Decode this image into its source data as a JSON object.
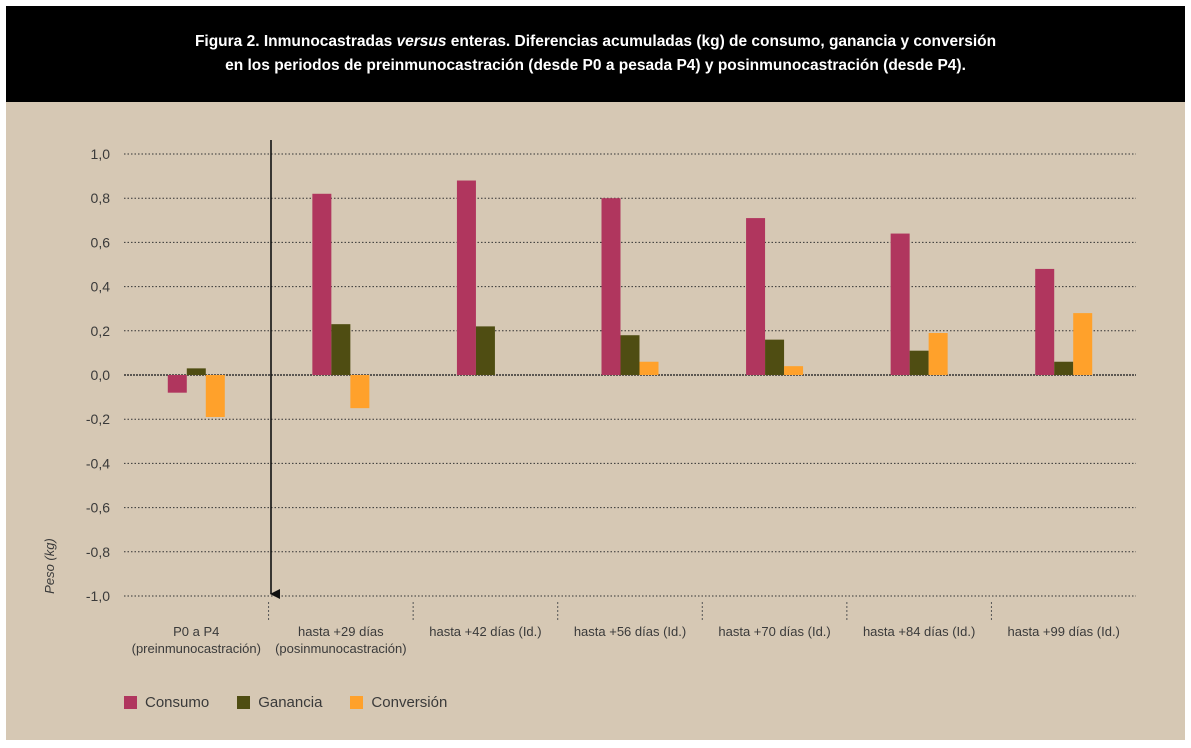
{
  "title": {
    "line1_prefix": "Figura 2. Inmunocastradas ",
    "line1_italic": "versus",
    "line1_suffix": " enteras. Diferencias acumuladas (kg) de consumo, ganancia y conversión",
    "line2": "en los periodos de preinmunocastración (desde P0 a pesada P4) y posinmunocastración (desde P4)."
  },
  "colors": {
    "background": "#d6c8b4",
    "consumo": "#b0365e",
    "ganancia": "#4f4d12",
    "conversion": "#ffa12b",
    "grid": "#333333",
    "text": "#3a3a3a"
  },
  "chart_data": {
    "type": "bar",
    "ylabel": "Peso (kg)",
    "ylim": [
      -1.0,
      1.0
    ],
    "yticks": [
      1.0,
      0.8,
      0.6,
      0.4,
      0.2,
      0.0,
      -0.2,
      -0.4,
      -0.6,
      -0.8,
      -1.0
    ],
    "ytick_labels": [
      "1,0",
      "0,8",
      "0,6",
      "0,4",
      "0,2",
      "0,0",
      "-0,2",
      "-0,4",
      "-0,6",
      "-0,8",
      "-1,0"
    ],
    "grid": true,
    "legend_position": "bottom-left",
    "categories": [
      [
        "P0 a P4",
        "(preinmunocastración)"
      ],
      [
        "hasta +29 días",
        "(posinmunocastración)"
      ],
      [
        "hasta +42 días (Id.)"
      ],
      [
        "hasta +56 días (Id.)"
      ],
      [
        "hasta +70 días (Id.)"
      ],
      [
        "hasta +84 días (Id.)"
      ],
      [
        "hasta +99 días (Id.)"
      ]
    ],
    "series": [
      {
        "name": "Consumo",
        "values": [
          -0.08,
          0.82,
          0.88,
          0.8,
          0.71,
          0.64,
          0.48
        ]
      },
      {
        "name": "Ganancia",
        "values": [
          0.03,
          0.23,
          0.22,
          0.18,
          0.16,
          0.11,
          0.06
        ]
      },
      {
        "name": "Conversión",
        "values": [
          -0.19,
          -0.15,
          0.0,
          0.06,
          0.04,
          0.19,
          0.28
        ]
      }
    ]
  }
}
